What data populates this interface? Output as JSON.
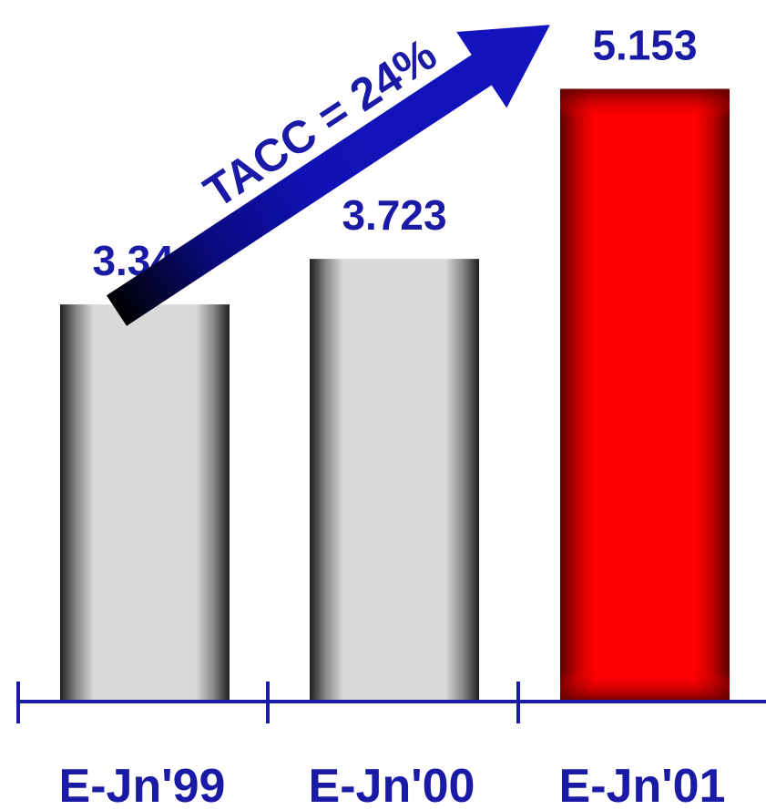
{
  "chart_data": {
    "type": "bar",
    "categories": [
      "E-Jn'99",
      "E-Jn'00",
      "E-Jn'01"
    ],
    "values": [
      3.34,
      3.723,
      5.153
    ],
    "value_labels": [
      "3.340",
      "3.723",
      "5.153"
    ],
    "bar_colors": [
      "#d9d9d9",
      "#d9d9d9",
      "#ff0000"
    ],
    "annotation": "TACC = 24%",
    "annotation_color": "#1a1aa6",
    "axis_color": "#1a1aa6",
    "grid": false,
    "legend": "none",
    "title": "",
    "xlabel": "",
    "ylabel": ""
  }
}
